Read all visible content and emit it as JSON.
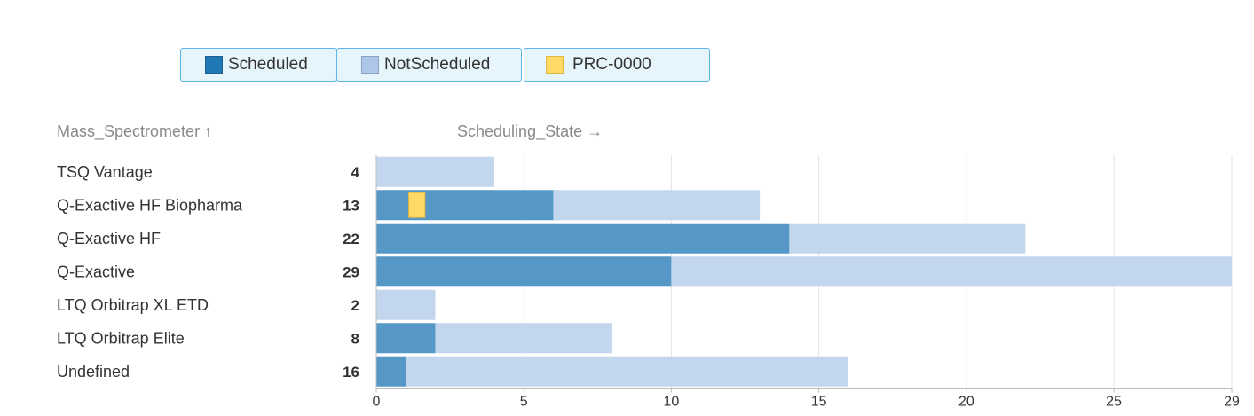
{
  "legend": [
    {
      "label": "Scheduled",
      "color": "#1f77b4"
    },
    {
      "label": "NotScheduled",
      "color": "#aec7e8"
    },
    {
      "label": "PRC-0000",
      "color": "#ffd966"
    }
  ],
  "headers": {
    "category_axis": "Mass_Spectrometer ↑",
    "value_axis": "Scheduling_State →"
  },
  "chart_data": {
    "type": "bar",
    "orientation": "horizontal",
    "stacked": true,
    "categories": [
      "TSQ Vantage",
      "Q-Exactive HF Biopharma",
      "Q-Exactive HF",
      "Q-Exactive",
      "LTQ Orbitrap XL ETD",
      "LTQ Orbitrap Elite",
      "Undefined"
    ],
    "totals": [
      4,
      13,
      22,
      29,
      2,
      8,
      16
    ],
    "series": [
      {
        "name": "Scheduled",
        "color": "#5598c8",
        "values": [
          0,
          6,
          14,
          10,
          0,
          2,
          1
        ]
      },
      {
        "name": "NotScheduled",
        "color": "#c2d6ee",
        "values": [
          4,
          7,
          8,
          19,
          2,
          6,
          15
        ]
      }
    ],
    "highlight": {
      "name": "PRC-0000",
      "category": "Q-Exactive HF Biopharma",
      "start": 1.1,
      "end": 1.65,
      "color": "#ffd966"
    },
    "xticks": [
      0,
      5,
      10,
      15,
      20,
      25,
      29
    ],
    "xlim": [
      0,
      29
    ],
    "grid": true,
    "legend_position": "top-left"
  }
}
